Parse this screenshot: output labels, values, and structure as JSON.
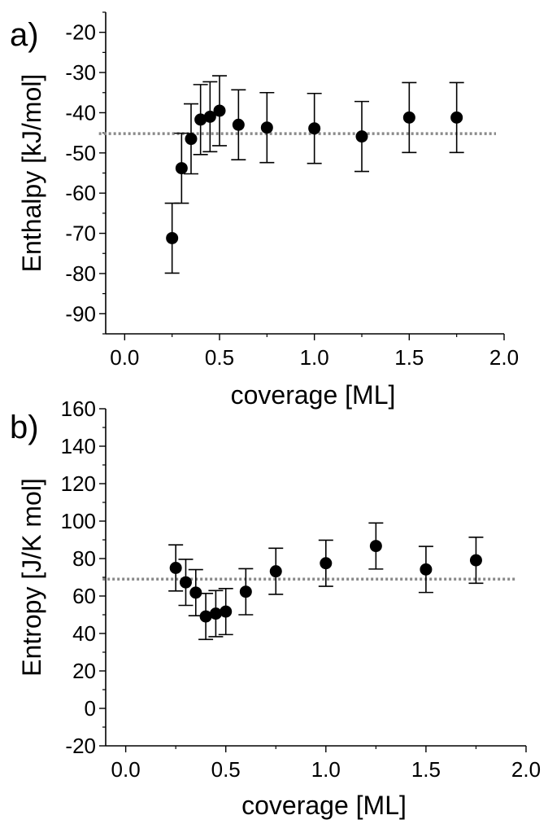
{
  "chart_data": [
    {
      "panel_label": "a)",
      "type": "scatter",
      "xlabel": "coverage [ML]",
      "ylabel": "Enthalpy [kJ/mol]",
      "xlim": [
        -0.1,
        2.0
      ],
      "ylim": [
        -95,
        -15
      ],
      "x_ticks": [
        0.0,
        0.5,
        1.0,
        1.5,
        2.0
      ],
      "x_tick_labels": [
        "0.0",
        "0.5",
        "1.0",
        "1.5",
        "2.0"
      ],
      "y_ticks": [
        -90,
        -80,
        -70,
        -60,
        -50,
        -40,
        -30,
        -20
      ],
      "y_tick_labels": [
        "-90",
        "-80",
        "-70",
        "-60",
        "-50",
        "-40",
        "-30",
        "-20"
      ],
      "points": [
        {
          "x": 0.25,
          "y": -71.2,
          "err": 8.7
        },
        {
          "x": 0.3,
          "y": -53.8,
          "err": 8.7
        },
        {
          "x": 0.35,
          "y": -46.5,
          "err": 8.7
        },
        {
          "x": 0.4,
          "y": -41.7,
          "err": 8.7
        },
        {
          "x": 0.45,
          "y": -41.0,
          "err": 8.7
        },
        {
          "x": 0.5,
          "y": -39.5,
          "err": 8.7
        },
        {
          "x": 0.6,
          "y": -43.0,
          "err": 8.7
        },
        {
          "x": 0.75,
          "y": -43.7,
          "err": 8.7
        },
        {
          "x": 1.0,
          "y": -43.9,
          "err": 8.7
        },
        {
          "x": 1.25,
          "y": -45.9,
          "err": 8.7
        },
        {
          "x": 1.5,
          "y": -41.2,
          "err": 8.7
        },
        {
          "x": 1.75,
          "y": -41.2,
          "err": 8.7
        }
      ],
      "reference_line": {
        "y": -45.2,
        "x_range": [
          0.25,
          1.85
        ],
        "style": "dotted",
        "color": "#8a8a8a"
      }
    },
    {
      "panel_label": "b)",
      "type": "scatter",
      "xlabel": "coverage [ML]",
      "ylabel": "Entropy [J/K mol]",
      "xlim": [
        -0.1,
        2.0
      ],
      "ylim": [
        -20,
        160
      ],
      "x_ticks": [
        0.0,
        0.5,
        1.0,
        1.5,
        2.0
      ],
      "x_tick_labels": [
        "0.0",
        "0.5",
        "1.0",
        "1.5",
        "2.0"
      ],
      "y_ticks": [
        -20,
        0,
        20,
        40,
        60,
        80,
        100,
        120,
        140,
        160
      ],
      "y_tick_labels": [
        "-20",
        "0",
        "20",
        "40",
        "60",
        "80",
        "100",
        "120",
        "140",
        "160"
      ],
      "points": [
        {
          "x": 0.25,
          "y": 75.0,
          "err": 12.3
        },
        {
          "x": 0.3,
          "y": 67.3,
          "err": 12.3
        },
        {
          "x": 0.35,
          "y": 61.8,
          "err": 12.3
        },
        {
          "x": 0.4,
          "y": 49.1,
          "err": 12.3
        },
        {
          "x": 0.45,
          "y": 50.6,
          "err": 12.3
        },
        {
          "x": 0.5,
          "y": 51.7,
          "err": 12.3
        },
        {
          "x": 0.6,
          "y": 62.3,
          "err": 12.3
        },
        {
          "x": 0.75,
          "y": 73.2,
          "err": 12.3
        },
        {
          "x": 1.0,
          "y": 77.5,
          "err": 12.3
        },
        {
          "x": 1.25,
          "y": 86.7,
          "err": 12.3
        },
        {
          "x": 1.5,
          "y": 74.2,
          "err": 12.3
        },
        {
          "x": 1.75,
          "y": 79.1,
          "err": 12.3
        }
      ],
      "reference_line": {
        "y": 69.0,
        "x_range": [
          0.25,
          1.85
        ],
        "style": "dotted",
        "color": "#8a8a8a"
      }
    }
  ]
}
